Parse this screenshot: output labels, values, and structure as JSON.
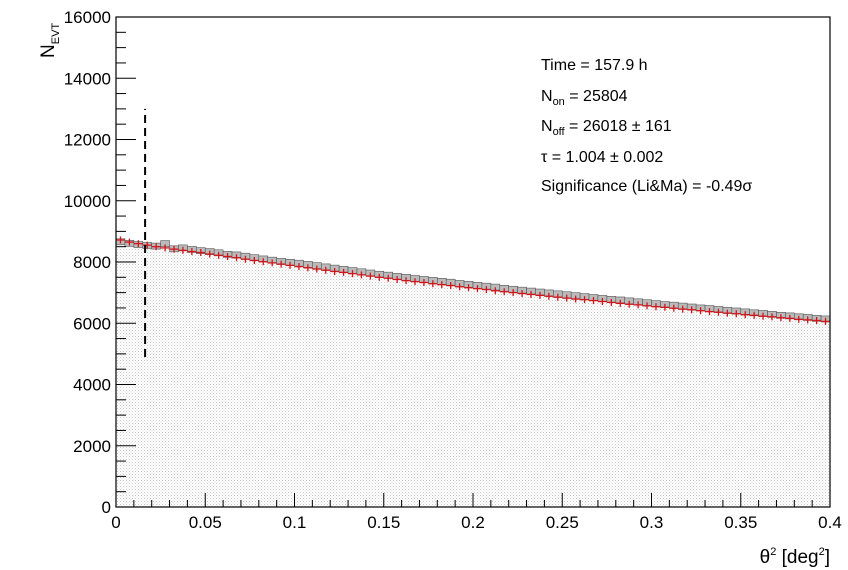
{
  "chart_data": {
    "type": "histogram",
    "xlabel": {
      "symbol": "θ",
      "sup": "2",
      "unit_open": " [deg",
      "unit_sup": "2",
      "unit_close": "]"
    },
    "ylabel": {
      "main": "N",
      "sub": "EVT"
    },
    "xlim": [
      0,
      0.4
    ],
    "ylim": [
      0,
      16000
    ],
    "x_ticks": [
      "0",
      "0.05",
      "0.1",
      "0.15",
      "0.2",
      "0.25",
      "0.3",
      "0.35",
      "0.4"
    ],
    "x_tick_values": [
      0,
      0.05,
      0.1,
      0.15,
      0.2,
      0.25,
      0.3,
      0.35,
      0.4
    ],
    "y_ticks": [
      "0",
      "2000",
      "4000",
      "6000",
      "8000",
      "10000",
      "12000",
      "14000",
      "16000"
    ],
    "y_tick_values": [
      0,
      2000,
      4000,
      6000,
      8000,
      10000,
      12000,
      14000,
      16000
    ],
    "bin_width": 0.005,
    "series": [
      {
        "style": "filled-histogram",
        "color": "#bbbbbb",
        "values": [
          8660,
          8610,
          8570,
          8540,
          8520,
          8600,
          8430,
          8460,
          8410,
          8370,
          8340,
          8300,
          8250,
          8230,
          8190,
          8140,
          8100,
          8060,
          8020,
          7990,
          7960,
          7920,
          7880,
          7840,
          7800,
          7760,
          7720,
          7680,
          7640,
          7600,
          7570,
          7530,
          7500,
          7460,
          7430,
          7400,
          7370,
          7340,
          7300,
          7270,
          7240,
          7210,
          7180,
          7140,
          7110,
          7080,
          7050,
          7020,
          6990,
          6960,
          6930,
          6900,
          6870,
          6840,
          6810,
          6780,
          6760,
          6730,
          6700,
          6670,
          6640,
          6610,
          6590,
          6560,
          6530,
          6500,
          6480,
          6450,
          6420,
          6400,
          6370,
          6340,
          6320,
          6290,
          6260,
          6240,
          6210,
          6190,
          6160,
          6140
        ]
      },
      {
        "style": "error-cross",
        "color": "#d0161a",
        "values": [
          8720,
          8650,
          8600,
          8550,
          8500,
          8460,
          8420,
          8380,
          8340,
          8310,
          8260,
          8220,
          8180,
          8140,
          8090,
          8050,
          8010,
          7970,
          7930,
          7890,
          7850,
          7810,
          7770,
          7730,
          7690,
          7660,
          7620,
          7580,
          7540,
          7500,
          7470,
          7430,
          7390,
          7360,
          7330,
          7290,
          7260,
          7230,
          7190,
          7160,
          7130,
          7100,
          7060,
          7030,
          7000,
          6970,
          6940,
          6910,
          6880,
          6850,
          6820,
          6790,
          6770,
          6740,
          6710,
          6680,
          6650,
          6620,
          6600,
          6570,
          6540,
          6520,
          6490,
          6460,
          6440,
          6410,
          6380,
          6360,
          6330,
          6310,
          6280,
          6260,
          6230,
          6210,
          6180,
          6160,
          6130,
          6110,
          6090,
          6060
        ]
      }
    ],
    "cut_line": {
      "x": 0.0163,
      "y_from": 4900,
      "y_to": 13000
    },
    "stats": [
      {
        "main": "Time = 157.9 h"
      },
      {
        "main": "N",
        "sub": "on",
        "rest": " = 25804"
      },
      {
        "main": "N",
        "sub": "off",
        "rest": " = 26018 ± 161"
      },
      {
        "main": "τ = 1.004 ± 0.002"
      },
      {
        "main": "Significance (Li&Ma) = -0.49σ"
      }
    ]
  }
}
